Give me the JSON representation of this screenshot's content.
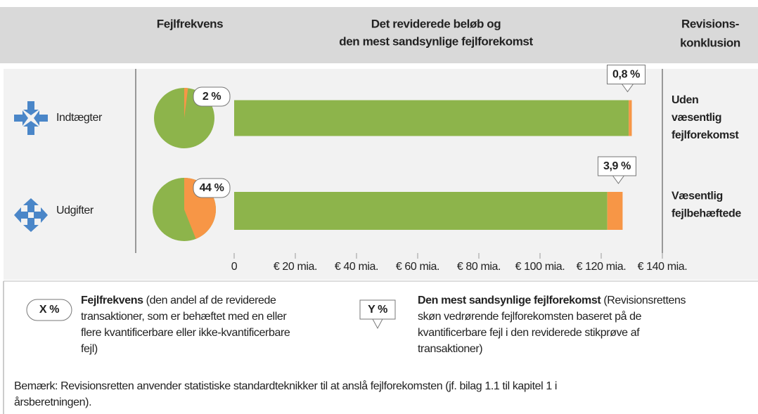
{
  "header": {
    "frequency": "Fejlfrekvens",
    "amount": [
      "Det reviderede beløb og",
      "den mest sandsynlige fejlforekomst"
    ],
    "conclusion": [
      "Revisions-",
      "konklusion"
    ]
  },
  "chart_data": {
    "type": "bar",
    "orientation": "horizontal",
    "stacked": true,
    "categories": [
      "Indtægter",
      "Udgifter"
    ],
    "series": [
      {
        "color": "#8db44b",
        "values": [
          129,
          122
        ]
      },
      {
        "color": "#f79646",
        "values": [
          1,
          5
        ]
      }
    ],
    "xlim": [
      0,
      140
    ],
    "xticks": [
      0,
      {
        "value": 20,
        "label": "€ 20 mia."
      },
      {
        "value": 40,
        "label": "€ 40 mia."
      },
      {
        "value": 60,
        "label": "€ 60 mia."
      },
      {
        "value": 80,
        "label": "€ 80 mia."
      },
      {
        "value": 100,
        "label": "€ 100 mia."
      },
      {
        "value": 120,
        "label": "€ 120 mia."
      },
      {
        "value": 140,
        "label": "€ 140 mia."
      }
    ],
    "error_frequency": {
      "type": "pie",
      "values": [
        2,
        44
      ],
      "value_labels": [
        "2 %",
        "44 %"
      ],
      "color": "#f79646",
      "rest_color": "#8db44b"
    },
    "most_likely_error": {
      "values": [
        0.8,
        3.9
      ],
      "value_labels": [
        "0,8 %",
        "3,9 %"
      ]
    },
    "conclusions": [
      [
        "Uden",
        "væsentlig",
        "fejlforekomst"
      ],
      [
        "Væsentlig",
        "fejlbehæftede"
      ]
    ]
  },
  "legend": {
    "x_key": "X %",
    "x_term": "Fejlfrekvens",
    "x_text": [
      "(den andel af de reviderede",
      "transaktioner, som er behæftet med en eller",
      "flere kvantificerbare eller ikke-kvantificerbare",
      "fejl)"
    ],
    "y_key": "Y %",
    "y_term": "Den mest sandsynlige fejlforekomst",
    "y_text": [
      "(Revisionsrettens",
      "skøn vedrørende fejlforekomsten baseret på de",
      "kvantificerbare fejl i den reviderede stikprøve af",
      "transaktioner)"
    ]
  },
  "note": [
    "Bemærk: Revisionsretten anvender statistiske standardteknikker til at anslå fejlforekomsten (jf. bilag 1.1 til kapitel 1 i",
    "årsberetningen)."
  ]
}
